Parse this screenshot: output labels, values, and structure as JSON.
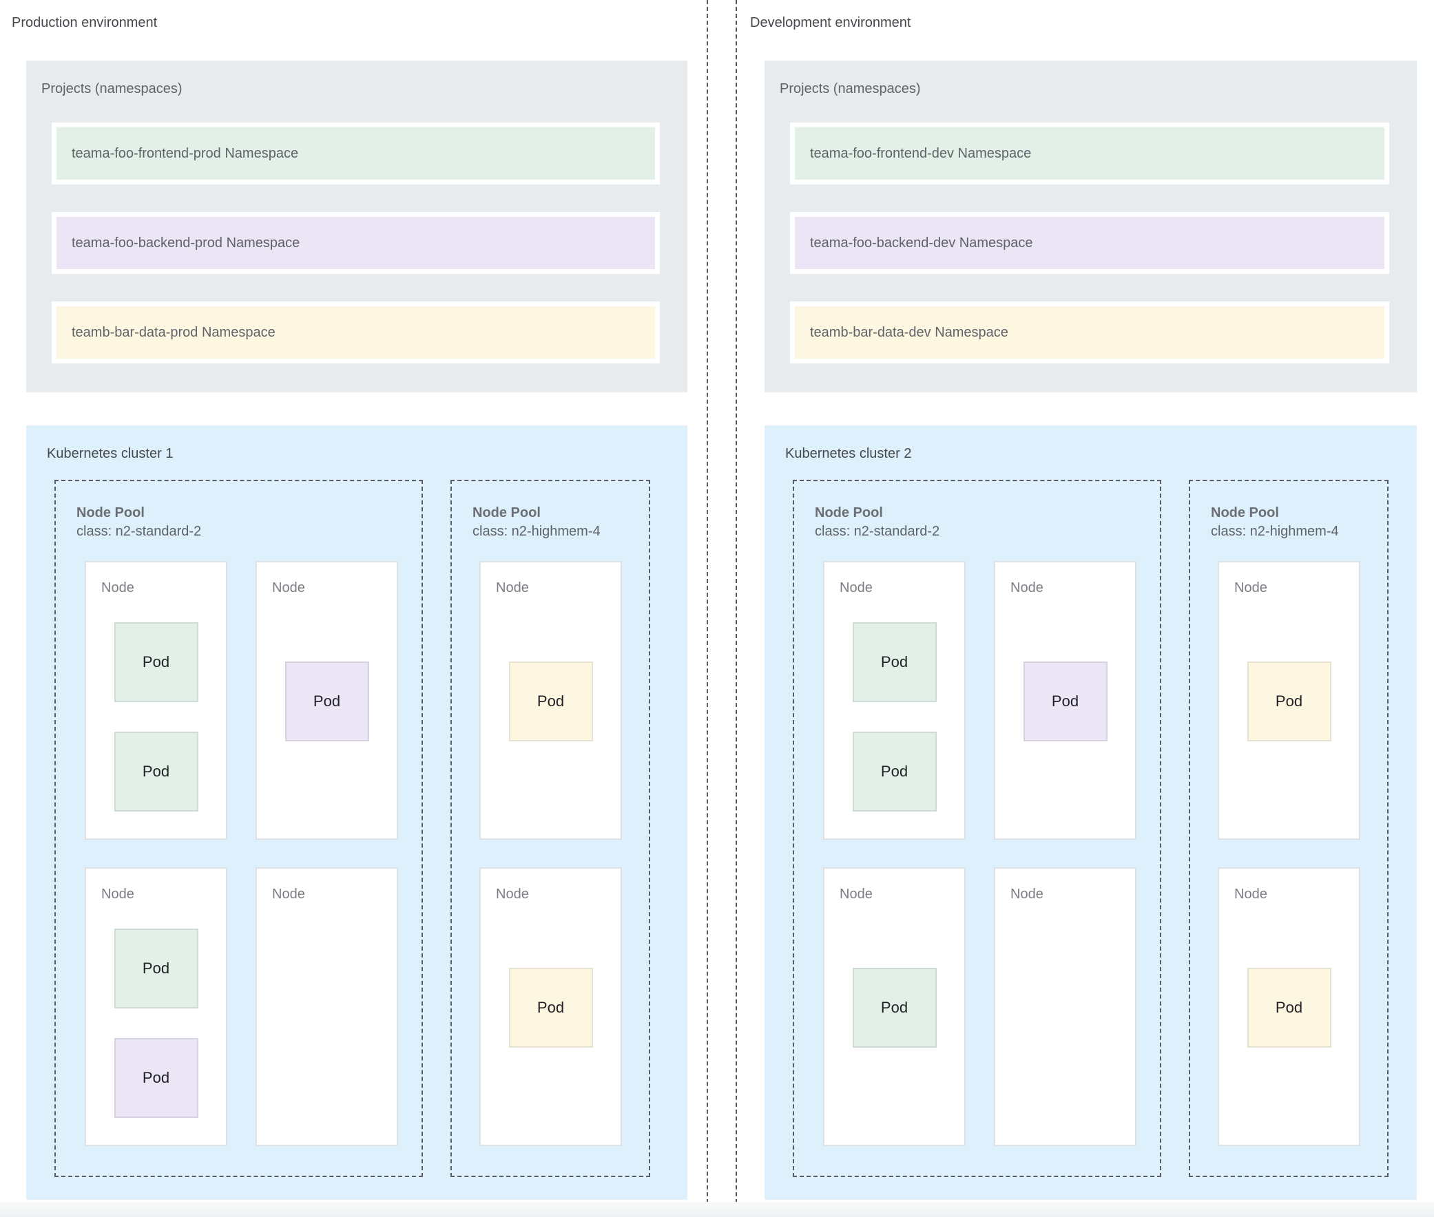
{
  "palette": {
    "projects_box_gray": "#e8ebee",
    "cluster_box_blue": "#ddf0fb",
    "frontend_green": "#e2f0e8",
    "backend_purple": "#ebe5f5",
    "data_yellow": "#fdf6e1",
    "dashed_border_gray": "#5a5e63",
    "label_gray": "#5f6368",
    "pod_text": "#1f2124"
  },
  "labels": {
    "projects_title": "Projects (namespaces)",
    "node": "Node",
    "node_pool": "Node Pool",
    "pod": "Pod"
  },
  "environments": [
    {
      "title": "Production environment",
      "projects": {
        "title": "Projects (namespaces)",
        "namespaces": [
          {
            "label": "teama-foo-frontend-prod Namespace",
            "color": "green"
          },
          {
            "label": "teama-foo-backend-prod Namespace",
            "color": "purple"
          },
          {
            "label": "teamb-bar-data-prod Namespace",
            "color": "yellow"
          }
        ]
      },
      "cluster": {
        "title": "Kubernetes cluster 1",
        "node_pools": [
          {
            "title": "Node Pool",
            "machine_class": "class: n2-standard-2",
            "nodes": [
              {
                "label": "Node",
                "pods": [
                  {
                    "label": "Pod",
                    "type": "frontend",
                    "color": "green",
                    "slot": "top"
                  },
                  {
                    "label": "Pod",
                    "type": "frontend",
                    "color": "green",
                    "slot": "second"
                  }
                ]
              },
              {
                "label": "Node",
                "pods": [
                  {
                    "label": "Pod",
                    "type": "backend",
                    "color": "purple",
                    "slot": "center"
                  }
                ]
              },
              {
                "label": "Node",
                "pods": [
                  {
                    "label": "Pod",
                    "type": "frontend",
                    "color": "green",
                    "slot": "top"
                  },
                  {
                    "label": "Pod",
                    "type": "backend",
                    "color": "purple",
                    "slot": "second"
                  }
                ]
              },
              {
                "label": "Node",
                "pods": []
              }
            ]
          },
          {
            "title": "Node Pool",
            "machine_class": "class: n2-highmem-4",
            "nodes": [
              {
                "label": "Node",
                "pods": [
                  {
                    "label": "Pod",
                    "type": "data",
                    "color": "yellow",
                    "slot": "center"
                  }
                ]
              },
              {
                "label": "Node",
                "pods": [
                  {
                    "label": "Pod",
                    "type": "data",
                    "color": "yellow",
                    "slot": "center"
                  }
                ]
              }
            ]
          }
        ]
      }
    },
    {
      "title": "Development environment",
      "projects": {
        "title": "Projects (namespaces)",
        "namespaces": [
          {
            "label": "teama-foo-frontend-dev Namespace",
            "color": "green"
          },
          {
            "label": "teama-foo-backend-dev Namespace",
            "color": "purple"
          },
          {
            "label": "teamb-bar-data-dev Namespace",
            "color": "yellow"
          }
        ]
      },
      "cluster": {
        "title": "Kubernetes cluster 2",
        "node_pools": [
          {
            "title": "Node Pool",
            "machine_class": "class: n2-standard-2",
            "nodes": [
              {
                "label": "Node",
                "pods": [
                  {
                    "label": "Pod",
                    "type": "frontend",
                    "color": "green",
                    "slot": "top"
                  },
                  {
                    "label": "Pod",
                    "type": "frontend",
                    "color": "green",
                    "slot": "second"
                  }
                ]
              },
              {
                "label": "Node",
                "pods": [
                  {
                    "label": "Pod",
                    "type": "backend",
                    "color": "purple",
                    "slot": "center"
                  }
                ]
              },
              {
                "label": "Node",
                "pods": [
                  {
                    "label": "Pod",
                    "type": "frontend",
                    "color": "green",
                    "slot": "center"
                  }
                ]
              },
              {
                "label": "Node",
                "pods": []
              }
            ]
          },
          {
            "title": "Node Pool",
            "machine_class": "class: n2-highmem-4",
            "nodes": [
              {
                "label": "Node",
                "pods": [
                  {
                    "label": "Pod",
                    "type": "data",
                    "color": "yellow",
                    "slot": "center"
                  }
                ]
              },
              {
                "label": "Node",
                "pods": [
                  {
                    "label": "Pod",
                    "type": "data",
                    "color": "yellow",
                    "slot": "center"
                  }
                ]
              }
            ]
          }
        ]
      }
    }
  ]
}
